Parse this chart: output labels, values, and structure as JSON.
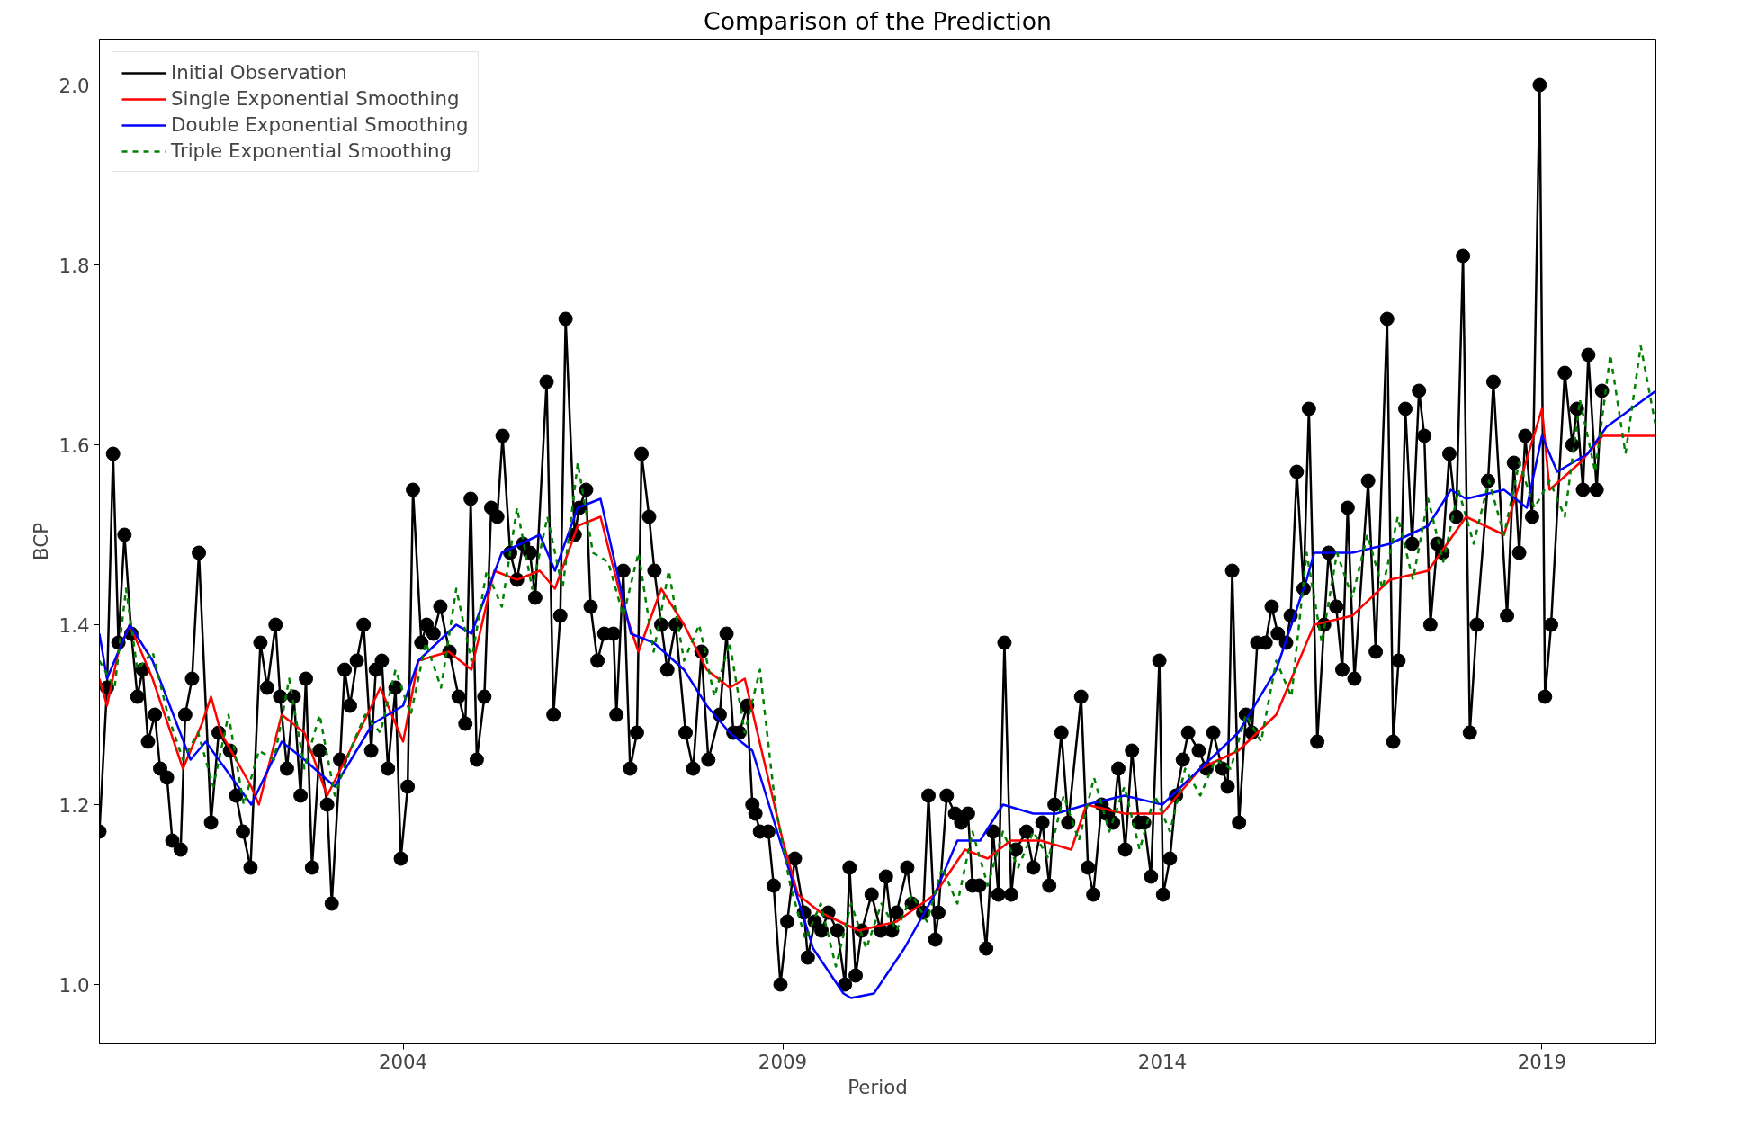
{
  "chart_data": {
    "type": "line",
    "title": "Comparison of the Prediction",
    "xlabel": "Period",
    "ylabel": "BCP",
    "xlim": [
      2000.0,
      2020.5
    ],
    "xticks": [
      2004,
      2009,
      2014,
      2019
    ],
    "ylim": [
      0.934,
      2.051
    ],
    "yticks": [
      {
        "value": 1.0,
        "label": "1.0"
      },
      1.2,
      1.4,
      1.6,
      1.8,
      {
        "value": 2.0,
        "label": "2.0"
      }
    ],
    "grid": false,
    "legend": "top left",
    "series": [
      {
        "name": "Initial Observation",
        "color": "#000000",
        "marker": "circle",
        "line_style": "solid",
        "x": [
          2000.0,
          2000.1,
          2000.18,
          2000.25,
          2000.33,
          2000.42,
          2000.5,
          2000.57,
          2000.64,
          2000.73,
          2000.8,
          2000.89,
          2000.96,
          2001.07,
          2001.13,
          2001.22,
          2001.31,
          2001.47,
          2001.57,
          2001.72,
          2001.8,
          2001.89,
          2001.99,
          2002.12,
          2002.21,
          2002.32,
          2002.38,
          2002.47,
          2002.56,
          2002.65,
          2002.72,
          2002.8,
          2002.9,
          2003.0,
          2003.06,
          2003.17,
          2003.23,
          2003.3,
          2003.39,
          2003.48,
          2003.58,
          2003.64,
          2003.72,
          2003.8,
          2003.9,
          2003.97,
          2004.06,
          2004.13,
          2004.24,
          2004.31,
          2004.4,
          2004.49,
          2004.61,
          2004.73,
          2004.82,
          2004.89,
          2004.97,
          2005.07,
          2005.16,
          2005.24,
          2005.31,
          2005.41,
          2005.5,
          2005.58,
          2005.67,
          2005.74,
          2005.89,
          2005.98,
          2006.07,
          2006.14,
          2006.26,
          2006.32,
          2006.41,
          2006.47,
          2006.56,
          2006.65,
          2006.77,
          2006.81,
          2006.9,
          2006.99,
          2007.08,
          2007.14,
          2007.24,
          2007.31,
          2007.4,
          2007.48,
          2007.59,
          2007.72,
          2007.82,
          2007.93,
          2008.02,
          2008.17,
          2008.26,
          2008.35,
          2008.43,
          2008.53,
          2008.6,
          2008.64,
          2008.7,
          2008.81,
          2008.88,
          2008.97,
          2009.06,
          2009.16,
          2009.28,
          2009.33,
          2009.42,
          2009.51,
          2009.6,
          2009.72,
          2009.82,
          2009.88,
          2009.96,
          2010.04,
          2010.17,
          2010.29,
          2010.36,
          2010.44,
          2010.5,
          2010.64,
          2010.7,
          2010.85,
          2010.92,
          2011.01,
          2011.05,
          2011.16,
          2011.27,
          2011.35,
          2011.44,
          2011.5,
          2011.59,
          2011.68,
          2011.77,
          2011.84,
          2011.92,
          2012.01,
          2012.07,
          2012.21,
          2012.3,
          2012.42,
          2012.51,
          2012.58,
          2012.67,
          2012.76,
          2012.93,
          2013.02,
          2013.09,
          2013.2,
          2013.26,
          2013.35,
          2013.42,
          2013.51,
          2013.6,
          2013.69,
          2013.76,
          2013.85,
          2013.96,
          2014.01,
          2014.1,
          2014.18,
          2014.27,
          2014.34,
          2014.48,
          2014.58,
          2014.67,
          2014.79,
          2014.86,
          2014.92,
          2015.01,
          2015.1,
          2015.18,
          2015.25,
          2015.36,
          2015.44,
          2015.52,
          2015.63,
          2015.69,
          2015.77,
          2015.86,
          2015.93,
          2016.04,
          2016.13,
          2016.19,
          2016.29,
          2016.37,
          2016.44,
          2016.53,
          2016.71,
          2016.81,
          2016.96,
          2017.04,
          2017.11,
          2017.2,
          2017.29,
          2017.38,
          2017.45,
          2017.53,
          2017.62,
          2017.69,
          2017.78,
          2017.87,
          2017.96,
          2018.05,
          2018.14,
          2018.29,
          2018.36,
          2018.54,
          2018.63,
          2018.7,
          2018.78,
          2018.87,
          2018.97,
          2019.04,
          2019.12,
          2019.3,
          2019.4,
          2019.46,
          2019.54,
          2019.61,
          2019.72,
          2019.79
        ],
        "values": [
          1.17,
          1.33,
          1.59,
          1.38,
          1.5,
          1.39,
          1.32,
          1.35,
          1.27,
          1.3,
          1.24,
          1.23,
          1.16,
          1.15,
          1.3,
          1.34,
          1.48,
          1.18,
          1.28,
          1.26,
          1.21,
          1.17,
          1.13,
          1.38,
          1.33,
          1.4,
          1.32,
          1.24,
          1.32,
          1.21,
          1.34,
          1.13,
          1.26,
          1.2,
          1.09,
          1.25,
          1.35,
          1.31,
          1.36,
          1.4,
          1.26,
          1.35,
          1.36,
          1.24,
          1.33,
          1.14,
          1.22,
          1.55,
          1.38,
          1.4,
          1.39,
          1.42,
          1.37,
          1.32,
          1.29,
          1.54,
          1.25,
          1.32,
          1.53,
          1.52,
          1.61,
          1.48,
          1.45,
          1.49,
          1.48,
          1.43,
          1.67,
          1.3,
          1.41,
          1.74,
          1.5,
          1.53,
          1.55,
          1.42,
          1.36,
          1.39,
          1.39,
          1.3,
          1.46,
          1.24,
          1.28,
          1.59,
          1.52,
          1.46,
          1.4,
          1.35,
          1.4,
          1.28,
          1.24,
          1.37,
          1.25,
          1.3,
          1.39,
          1.28,
          1.28,
          1.31,
          1.2,
          1.19,
          1.17,
          1.17,
          1.11,
          1.0,
          1.07,
          1.14,
          1.08,
          1.03,
          1.07,
          1.06,
          1.08,
          1.06,
          1.0,
          1.13,
          1.01,
          1.06,
          1.1,
          1.06,
          1.12,
          1.06,
          1.08,
          1.13,
          1.09,
          1.08,
          1.21,
          1.05,
          1.08,
          1.21,
          1.19,
          1.18,
          1.19,
          1.11,
          1.11,
          1.04,
          1.17,
          1.1,
          1.38,
          1.1,
          1.15,
          1.17,
          1.13,
          1.18,
          1.11,
          1.2,
          1.28,
          1.18,
          1.32,
          1.13,
          1.1,
          1.2,
          1.19,
          1.18,
          1.24,
          1.15,
          1.26,
          1.18,
          1.18,
          1.12,
          1.36,
          1.1,
          1.14,
          1.21,
          1.25,
          1.28,
          1.26,
          1.24,
          1.28,
          1.24,
          1.22,
          1.46,
          1.18,
          1.3,
          1.28,
          1.38,
          1.38,
          1.42,
          1.39,
          1.38,
          1.41,
          1.57,
          1.44,
          1.64,
          1.27,
          1.4,
          1.48,
          1.42,
          1.35,
          1.53,
          1.34,
          1.56,
          1.37,
          1.74,
          1.27,
          1.36,
          1.64,
          1.49,
          1.66,
          1.61,
          1.4,
          1.49,
          1.48,
          1.59,
          1.52,
          1.81,
          1.28,
          1.4,
          1.56,
          1.67,
          1.41,
          1.58,
          1.48,
          1.61,
          1.52,
          2.0,
          1.32,
          1.4,
          1.68,
          1.6,
          1.64,
          1.55,
          1.7,
          1.55,
          1.66
        ]
      },
      {
        "name": "Single Exponential Smoothing",
        "color": "#ff0000",
        "marker": "none",
        "line_style": "solid",
        "x": [
          2000.0,
          2000.1,
          2000.25,
          2000.4,
          2000.7,
          2001.1,
          2001.35,
          2001.47,
          2001.6,
          2002.0,
          2002.1,
          2002.4,
          2002.7,
          2003.0,
          2003.3,
          2003.7,
          2004.0,
          2004.2,
          2004.6,
          2004.9,
          2005.2,
          2005.5,
          2005.8,
          2006.0,
          2006.3,
          2006.6,
          2006.9,
          2007.1,
          2007.4,
          2007.7,
          2008.0,
          2008.3,
          2008.5,
          2009.0,
          2009.2,
          2009.5,
          2009.75,
          2010.0,
          2010.5,
          2011.0,
          2011.4,
          2011.7,
          2012.0,
          2012.4,
          2012.8,
          2013.0,
          2013.5,
          2014.0,
          2014.5,
          2015.0,
          2015.5,
          2016.0,
          2016.5,
          2017.0,
          2017.5,
          2018.0,
          2018.5,
          2019.0,
          2019.1,
          2019.5,
          2019.8,
          2020.5
        ],
        "values": [
          1.34,
          1.31,
          1.37,
          1.4,
          1.34,
          1.24,
          1.29,
          1.32,
          1.28,
          1.22,
          1.2,
          1.3,
          1.28,
          1.21,
          1.26,
          1.33,
          1.27,
          1.36,
          1.37,
          1.35,
          1.46,
          1.45,
          1.46,
          1.44,
          1.51,
          1.52,
          1.42,
          1.37,
          1.44,
          1.4,
          1.35,
          1.33,
          1.34,
          1.16,
          1.1,
          1.08,
          1.07,
          1.06,
          1.07,
          1.1,
          1.15,
          1.14,
          1.16,
          1.16,
          1.15,
          1.2,
          1.19,
          1.19,
          1.24,
          1.26,
          1.3,
          1.4,
          1.41,
          1.45,
          1.46,
          1.52,
          1.5,
          1.64,
          1.55,
          1.58,
          1.61,
          1.61
        ]
      },
      {
        "name": "Double Exponential Smoothing",
        "color": "#0000ff",
        "marker": "none",
        "line_style": "solid",
        "x": [
          2000.0,
          2000.1,
          2000.4,
          2000.7,
          2001.2,
          2001.4,
          2002.0,
          2002.4,
          2002.7,
          2003.1,
          2003.6,
          2004.0,
          2004.2,
          2004.7,
          2004.9,
          2005.3,
          2005.8,
          2006.0,
          2006.3,
          2006.6,
          2007.0,
          2007.3,
          2007.7,
          2008.0,
          2008.3,
          2008.6,
          2009.0,
          2009.4,
          2009.8,
          2009.9,
          2010.2,
          2010.6,
          2011.0,
          2011.3,
          2011.6,
          2011.9,
          2012.3,
          2012.6,
          2013.0,
          2013.5,
          2014.0,
          2014.5,
          2015.0,
          2015.5,
          2015.9,
          2016.0,
          2016.5,
          2017.0,
          2017.5,
          2017.8,
          2018.0,
          2018.5,
          2018.8,
          2019.0,
          2019.2,
          2019.6,
          2019.85,
          2020.5
        ],
        "values": [
          1.39,
          1.34,
          1.4,
          1.36,
          1.25,
          1.27,
          1.2,
          1.27,
          1.25,
          1.22,
          1.29,
          1.31,
          1.36,
          1.4,
          1.39,
          1.48,
          1.5,
          1.46,
          1.53,
          1.54,
          1.39,
          1.38,
          1.35,
          1.31,
          1.28,
          1.26,
          1.15,
          1.04,
          0.99,
          0.985,
          0.99,
          1.04,
          1.1,
          1.16,
          1.16,
          1.2,
          1.19,
          1.19,
          1.2,
          1.21,
          1.2,
          1.24,
          1.28,
          1.35,
          1.45,
          1.48,
          1.48,
          1.49,
          1.51,
          1.55,
          1.54,
          1.55,
          1.53,
          1.61,
          1.57,
          1.59,
          1.62,
          1.66
        ]
      },
      {
        "name": "Triple Exponential Smoothing",
        "color": "#008000",
        "marker": "none",
        "line_style": "dashed",
        "x": [
          2000.0,
          2000.2,
          2000.35,
          2000.5,
          2000.7,
          2000.9,
          2001.1,
          2001.3,
          2001.5,
          2001.7,
          2001.9,
          2002.1,
          2002.3,
          2002.5,
          2002.7,
          2002.9,
          2003.1,
          2003.3,
          2003.5,
          2003.7,
          2003.9,
          2004.1,
          2004.3,
          2004.5,
          2004.7,
          2004.9,
          2005.1,
          2005.3,
          2005.5,
          2005.7,
          2005.9,
          2006.1,
          2006.3,
          2006.5,
          2006.7,
          2006.9,
          2007.1,
          2007.3,
          2007.5,
          2007.7,
          2007.9,
          2008.1,
          2008.3,
          2008.5,
          2008.7,
          2008.9,
          2009.1,
          2009.3,
          2009.5,
          2009.7,
          2009.9,
          2010.1,
          2010.3,
          2010.5,
          2010.7,
          2010.9,
          2011.1,
          2011.3,
          2011.5,
          2011.7,
          2011.9,
          2012.1,
          2012.3,
          2012.5,
          2012.7,
          2012.9,
          2013.1,
          2013.3,
          2013.5,
          2013.7,
          2013.9,
          2014.1,
          2014.3,
          2014.5,
          2014.7,
          2014.9,
          2015.1,
          2015.3,
          2015.5,
          2015.7,
          2015.9,
          2016.1,
          2016.3,
          2016.5,
          2016.7,
          2016.9,
          2017.1,
          2017.3,
          2017.5,
          2017.7,
          2017.9,
          2018.1,
          2018.3,
          2018.5,
          2018.7,
          2018.9,
          2019.1,
          2019.3,
          2019.5,
          2019.7,
          2019.9,
          2020.1,
          2020.3,
          2020.5
        ],
        "values": [
          1.36,
          1.33,
          1.44,
          1.35,
          1.37,
          1.3,
          1.25,
          1.28,
          1.22,
          1.3,
          1.2,
          1.26,
          1.25,
          1.34,
          1.24,
          1.3,
          1.21,
          1.26,
          1.3,
          1.28,
          1.35,
          1.3,
          1.38,
          1.33,
          1.44,
          1.36,
          1.46,
          1.42,
          1.53,
          1.44,
          1.52,
          1.44,
          1.58,
          1.48,
          1.47,
          1.41,
          1.48,
          1.37,
          1.46,
          1.36,
          1.4,
          1.32,
          1.38,
          1.28,
          1.35,
          1.2,
          1.11,
          1.05,
          1.09,
          1.02,
          1.09,
          1.04,
          1.09,
          1.06,
          1.1,
          1.07,
          1.13,
          1.09,
          1.17,
          1.11,
          1.17,
          1.13,
          1.17,
          1.14,
          1.21,
          1.16,
          1.23,
          1.17,
          1.22,
          1.15,
          1.21,
          1.17,
          1.24,
          1.21,
          1.25,
          1.24,
          1.3,
          1.27,
          1.36,
          1.32,
          1.48,
          1.38,
          1.48,
          1.43,
          1.5,
          1.44,
          1.52,
          1.45,
          1.54,
          1.47,
          1.55,
          1.49,
          1.56,
          1.5,
          1.58,
          1.53,
          1.56,
          1.52,
          1.65,
          1.57,
          1.7,
          1.59,
          1.71,
          1.62
        ]
      }
    ]
  }
}
